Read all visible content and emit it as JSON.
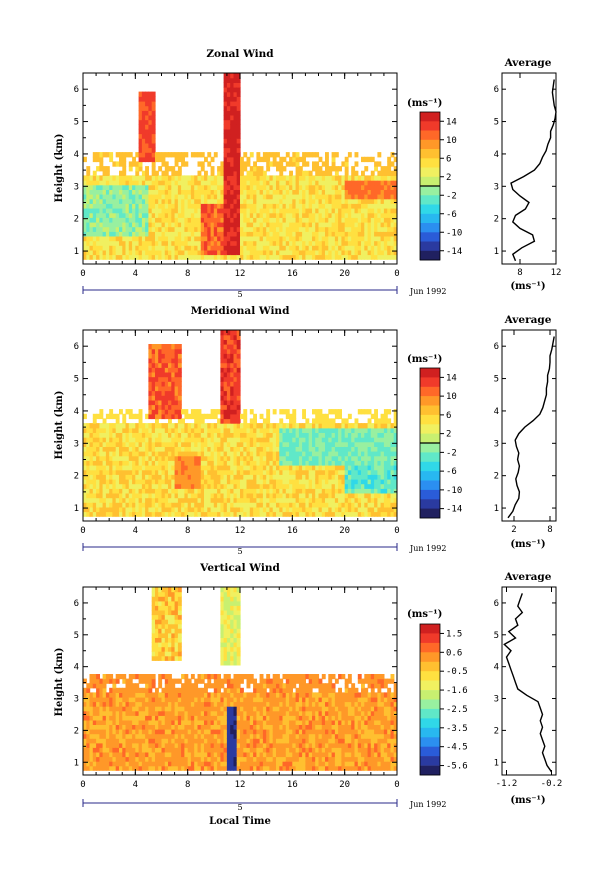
{
  "chart_data": [
    {
      "type": "heatmap",
      "title": "Zonal Wind",
      "ylabel": "Height (km)",
      "x_ticks": [
        "0",
        "4",
        "8",
        "12",
        "16",
        "20",
        "0"
      ],
      "xlim": [
        0,
        24
      ],
      "y_ticks": [
        "1",
        "2",
        "3",
        "4",
        "5",
        "6"
      ],
      "ylim": [
        0.6,
        6.5
      ],
      "date_bar_label": "5",
      "date_label": "Jun 1992",
      "colorbar": {
        "unit": "(ms⁻¹)",
        "labels": [
          "14",
          "10",
          "6",
          "2",
          "-2",
          "-6",
          "-10",
          "-14"
        ],
        "range": [
          -16,
          16
        ]
      },
      "average_profile": {
        "title": "Average",
        "xlabel": "(ms⁻¹)",
        "x_ticks": [
          "8",
          "12"
        ],
        "xlim": [
          6,
          12
        ],
        "y_ticks": [
          "1",
          "2",
          "3",
          "4",
          "5",
          "6"
        ],
        "heights": [
          0.7,
          0.9,
          1.1,
          1.3,
          1.5,
          1.7,
          1.9,
          2.1,
          2.3,
          2.5,
          2.7,
          2.9,
          3.1,
          3.3,
          3.5,
          3.7,
          3.9,
          4.1,
          4.3,
          4.5,
          4.7,
          4.9,
          5.1,
          5.3,
          5.5,
          5.7,
          5.9,
          6.1,
          6.3
        ],
        "values": [
          7.5,
          7.2,
          8.2,
          9.6,
          9.4,
          8.0,
          7.2,
          7.5,
          8.6,
          9.0,
          8.0,
          7.2,
          7.0,
          8.4,
          9.6,
          10.2,
          10.5,
          10.9,
          11.1,
          11.4,
          11.4,
          11.7,
          11.9,
          12.0,
          11.8,
          11.7,
          11.6,
          11.7,
          11.8
        ]
      }
    },
    {
      "type": "heatmap",
      "title": "Meridional Wind",
      "ylabel": "Height (km)",
      "x_ticks": [
        "0",
        "4",
        "8",
        "12",
        "16",
        "20",
        "0"
      ],
      "xlim": [
        0,
        24
      ],
      "y_ticks": [
        "1",
        "2",
        "3",
        "4",
        "5",
        "6"
      ],
      "ylim": [
        0.6,
        6.5
      ],
      "date_bar_label": "5",
      "date_label": "Jun 1992",
      "colorbar": {
        "unit": "(ms⁻¹)",
        "labels": [
          "14",
          "10",
          "6",
          "2",
          "-2",
          "-6",
          "-10",
          "-14"
        ],
        "range": [
          -16,
          16
        ]
      },
      "average_profile": {
        "title": "Average",
        "xlabel": "(ms⁻¹)",
        "x_ticks": [
          "2",
          "8"
        ],
        "xlim": [
          0,
          9
        ],
        "y_ticks": [
          "1",
          "2",
          "3",
          "4",
          "5",
          "6"
        ],
        "heights": [
          0.7,
          0.9,
          1.1,
          1.3,
          1.5,
          1.7,
          1.9,
          2.1,
          2.3,
          2.5,
          2.7,
          2.9,
          3.1,
          3.3,
          3.5,
          3.7,
          3.9,
          4.1,
          4.3,
          4.5,
          4.7,
          4.9,
          5.1,
          5.3,
          5.5,
          5.7,
          5.9,
          6.1,
          6.3
        ],
        "values": [
          1.0,
          1.8,
          2.2,
          2.8,
          2.9,
          2.5,
          2.3,
          2.7,
          2.9,
          2.6,
          2.8,
          2.4,
          2.2,
          2.8,
          3.8,
          5.2,
          6.3,
          6.8,
          7.1,
          7.4,
          7.4,
          7.6,
          7.6,
          7.9,
          8.0,
          8.0,
          8.3,
          8.5,
          8.7
        ]
      }
    },
    {
      "type": "heatmap",
      "title": "Vertical Wind",
      "ylabel": "Height (km)",
      "xlabel": "Local Time",
      "x_ticks": [
        "0",
        "4",
        "8",
        "12",
        "16",
        "20",
        "0"
      ],
      "xlim": [
        0,
        24
      ],
      "y_ticks": [
        "1",
        "2",
        "3",
        "4",
        "5",
        "6"
      ],
      "ylim": [
        0.6,
        6.5
      ],
      "date_bar_label": "5",
      "date_label": "Jun 1992",
      "colorbar": {
        "unit": "(ms⁻¹)",
        "labels": [
          "1.5",
          "0.6",
          "-0.5",
          "-1.6",
          "-2.5",
          "-3.5",
          "-4.5",
          "-5.6"
        ],
        "range": [
          -6,
          2
        ]
      },
      "average_profile": {
        "title": "Average",
        "xlabel": "(ms⁻¹)",
        "x_ticks": [
          "-1.2",
          "-0.2"
        ],
        "xlim": [
          -1.3,
          -0.1
        ],
        "y_ticks": [
          "1",
          "2",
          "3",
          "4",
          "5",
          "6"
        ],
        "heights": [
          0.7,
          0.9,
          1.1,
          1.3,
          1.5,
          1.7,
          1.9,
          2.1,
          2.3,
          2.5,
          2.7,
          2.9,
          3.1,
          3.3,
          3.5,
          3.7,
          3.9,
          4.1,
          4.3,
          4.5,
          4.7,
          4.9,
          5.1,
          5.3,
          5.5,
          5.7,
          5.9,
          6.1,
          6.3
        ],
        "values": [
          -0.2,
          -0.3,
          -0.35,
          -0.4,
          -0.35,
          -0.4,
          -0.45,
          -0.4,
          -0.45,
          -0.4,
          -0.45,
          -0.5,
          -0.75,
          -0.95,
          -1.0,
          -1.05,
          -1.1,
          -1.15,
          -1.2,
          -1.1,
          -1.25,
          -1.0,
          -1.15,
          -0.95,
          -1.0,
          -0.85,
          -0.95,
          -0.9,
          -0.85
        ]
      }
    }
  ]
}
